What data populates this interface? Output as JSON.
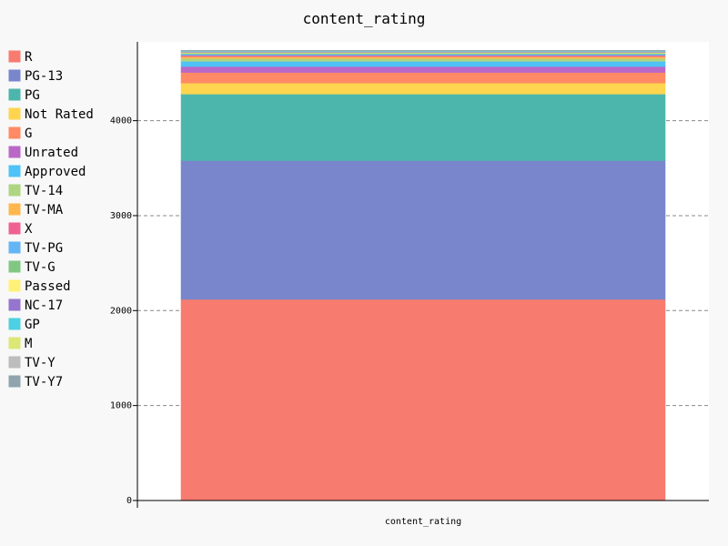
{
  "chart_data": {
    "type": "bar",
    "stacked": true,
    "title": "content_rating",
    "xlabel": "content_rating",
    "ylabel": "",
    "categories": [
      "content_rating"
    ],
    "ylim": [
      0,
      4830
    ],
    "yticks": [
      0,
      1000,
      2000,
      3000,
      4000
    ],
    "grid": "y-dashed",
    "legend_position": "left",
    "series": [
      {
        "name": "R",
        "color": "#f77b6f",
        "values": [
          2118
        ]
      },
      {
        "name": "PG-13",
        "color": "#7986cb",
        "values": [
          1461
        ]
      },
      {
        "name": "PG",
        "color": "#4db6ac",
        "values": [
          701
        ]
      },
      {
        "name": "Not Rated",
        "color": "#ffd54f",
        "values": [
          116
        ]
      },
      {
        "name": "G",
        "color": "#ff8a65",
        "values": [
          112
        ]
      },
      {
        "name": "Unrated",
        "color": "#ba68c8",
        "values": [
          62
        ]
      },
      {
        "name": "Approved",
        "color": "#4fc3f7",
        "values": [
          55
        ]
      },
      {
        "name": "TV-14",
        "color": "#aed581",
        "values": [
          30
        ]
      },
      {
        "name": "TV-MA",
        "color": "#ffb74d",
        "values": [
          20
        ]
      },
      {
        "name": "X",
        "color": "#f06292",
        "values": [
          13
        ]
      },
      {
        "name": "TV-PG",
        "color": "#64b5f6",
        "values": [
          13
        ]
      },
      {
        "name": "TV-G",
        "color": "#81c784",
        "values": [
          10
        ]
      },
      {
        "name": "Passed",
        "color": "#fff176",
        "values": [
          9
        ]
      },
      {
        "name": "NC-17",
        "color": "#9575cd",
        "values": [
          7
        ]
      },
      {
        "name": "GP",
        "color": "#4dd0e1",
        "values": [
          6
        ]
      },
      {
        "name": "M",
        "color": "#dce775",
        "values": [
          5
        ]
      },
      {
        "name": "TV-Y",
        "color": "#bdbdbd",
        "values": [
          1
        ]
      },
      {
        "name": "TV-Y7",
        "color": "#90a4ae",
        "values": [
          1
        ]
      }
    ]
  }
}
